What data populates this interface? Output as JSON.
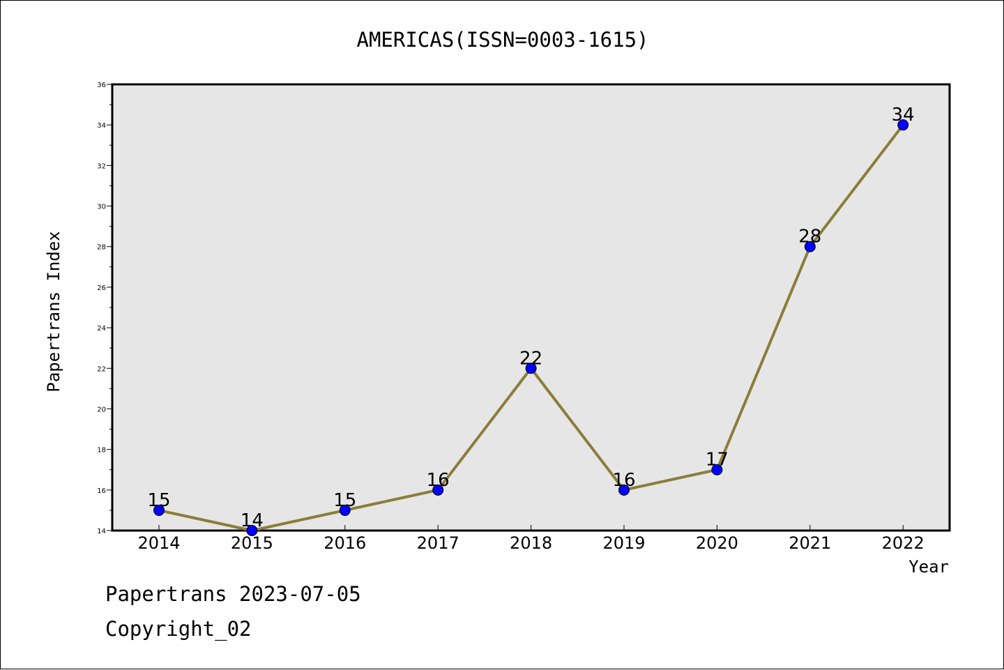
{
  "chart_data": {
    "type": "line",
    "title": "AMERICAS(ISSN=0003-1615)",
    "xlabel": "Year",
    "ylabel": "Papertrans Index",
    "x": [
      "2014",
      "2015",
      "2016",
      "2017",
      "2018",
      "2019",
      "2020",
      "2021",
      "2022"
    ],
    "series": [
      {
        "values": [
          15,
          14,
          15,
          16,
          22,
          16,
          17,
          28,
          34
        ]
      }
    ],
    "data_labels": [
      "15",
      "14",
      "15",
      "16",
      "22",
      "16",
      "17",
      "28",
      "34"
    ],
    "ylim": [
      14,
      36
    ],
    "yticks": [
      14,
      16,
      18,
      20,
      22,
      24,
      26,
      28,
      30,
      32,
      34,
      36
    ],
    "grid": false,
    "line_color": "#8b7d3a",
    "marker_color": "#0000ff",
    "plot_background": "#e6e6e6"
  },
  "footer": {
    "line1": "Papertrans 2023-07-05",
    "line2": "Copyright_02"
  }
}
